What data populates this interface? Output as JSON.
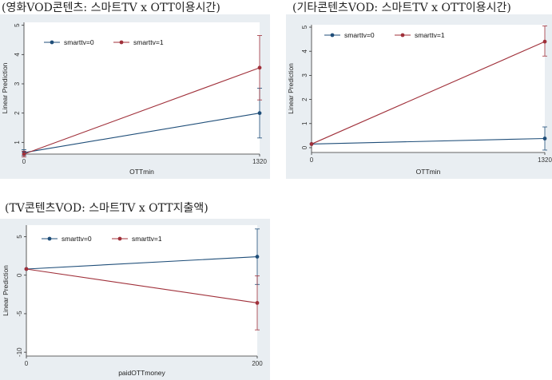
{
  "chart_data": [
    {
      "type": "line",
      "title": "(영화VOD콘텐츠: 스마트TV x OTT이용시간)",
      "xlabel": "OTTmin",
      "ylabel": "Linear Prediction",
      "x_ticks": [
        "0",
        "1320"
      ],
      "y_ticks": [
        "1",
        "2",
        "3",
        "4",
        "5"
      ],
      "x": [
        0,
        1320
      ],
      "xlim": [
        0,
        1320
      ],
      "ylim": [
        0.6,
        5.1
      ],
      "legend_position": "top-left",
      "series": [
        {
          "name": "smarttv=0",
          "color": "#1f4e79",
          "values": [
            0.65,
            2.0
          ],
          "ci_low": [
            0.55,
            1.15
          ],
          "ci_high": [
            0.75,
            2.85
          ]
        },
        {
          "name": "smarttv=1",
          "color": "#a0303a",
          "values": [
            0.6,
            3.55
          ],
          "ci_low": [
            0.5,
            2.45
          ],
          "ci_high": [
            0.7,
            4.65
          ]
        }
      ]
    },
    {
      "type": "line",
      "title": "(기타콘텐츠VOD: 스마트TV x OTT이용시간)",
      "xlabel": "OTTmin",
      "ylabel": "Linear Prediction",
      "x_ticks": [
        "0",
        "1320"
      ],
      "y_ticks": [
        "0",
        "1",
        "2",
        "3",
        "4",
        "5"
      ],
      "x": [
        0,
        1320
      ],
      "xlim": [
        0,
        1320
      ],
      "ylim": [
        -0.2,
        5.1
      ],
      "legend_position": "top-left",
      "series": [
        {
          "name": "smarttv=0",
          "color": "#1f4e79",
          "values": [
            0.15,
            0.38
          ],
          "ci_low": [
            0.1,
            -0.1
          ],
          "ci_high": [
            0.2,
            0.86
          ]
        },
        {
          "name": "smarttv=1",
          "color": "#a0303a",
          "values": [
            0.15,
            4.4
          ],
          "ci_low": [
            0.1,
            3.8
          ],
          "ci_high": [
            0.2,
            5.05
          ]
        }
      ]
    },
    {
      "type": "line",
      "title": "(TV콘텐츠VOD: 스마트TV x OTT지출액)",
      "xlabel": "paidOTTmoney",
      "ylabel": "Linear Prediction",
      "x_ticks": [
        "0",
        "200"
      ],
      "y_ticks": [
        "-10",
        "-5",
        "0",
        "5"
      ],
      "x": [
        0,
        200
      ],
      "xlim": [
        0,
        200
      ],
      "ylim": [
        -10.5,
        6.5
      ],
      "legend_position": "top-left",
      "series": [
        {
          "name": "smarttv=0",
          "color": "#1f4e79",
          "values": [
            0.8,
            2.4
          ],
          "ci_low": [
            0.6,
            -1.2
          ],
          "ci_high": [
            1.0,
            6.0
          ]
        },
        {
          "name": "smarttv=1",
          "color": "#a0303a",
          "values": [
            0.8,
            -3.6
          ],
          "ci_low": [
            0.6,
            -7.1
          ],
          "ci_high": [
            1.0,
            -0.1
          ]
        }
      ]
    }
  ]
}
